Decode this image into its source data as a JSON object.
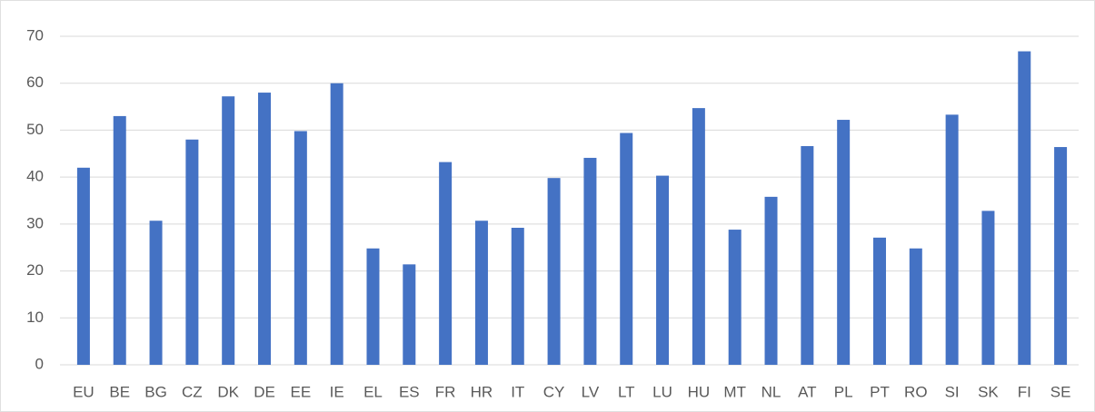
{
  "chart_data": {
    "type": "bar",
    "categories": [
      "EU",
      "BE",
      "BG",
      "CZ",
      "DK",
      "DE",
      "EE",
      "IE",
      "EL",
      "ES",
      "FR",
      "HR",
      "IT",
      "CY",
      "LV",
      "LT",
      "LU",
      "HU",
      "MT",
      "NL",
      "AT",
      "PL",
      "PT",
      "RO",
      "SI",
      "SK",
      "FI",
      "SE"
    ],
    "values": [
      42,
      53,
      30.7,
      48,
      57.2,
      58,
      49.8,
      60,
      24.8,
      21.4,
      43.2,
      30.7,
      29.2,
      39.8,
      44.1,
      49.4,
      40.3,
      54.7,
      28.8,
      35.8,
      46.6,
      52.2,
      27.1,
      24.8,
      53.3,
      32.8,
      66.8,
      46.4
    ],
    "color": "#4472c4",
    "ylim": [
      0,
      70
    ],
    "yticks": [
      0,
      10,
      20,
      30,
      40,
      50,
      60,
      70
    ],
    "grid": true
  }
}
